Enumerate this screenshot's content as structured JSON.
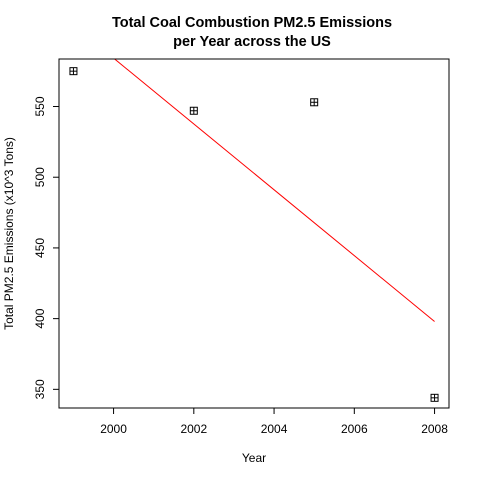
{
  "chart_data": {
    "type": "scatter",
    "title_lines": [
      "Total Coal Combustion PM2.5 Emissions",
      "per Year across the US"
    ],
    "xlabel": "Year",
    "ylabel": "Total PM2.5 Emissions (x10^3 Tons)",
    "x_ticks": [
      2000,
      2002,
      2004,
      2006,
      2008
    ],
    "y_ticks": [
      350,
      400,
      450,
      500,
      550
    ],
    "xlim": [
      1998.64,
      2008.36
    ],
    "ylim": [
      336.8,
      583.6
    ],
    "grid": false,
    "legend": "none",
    "series": [
      {
        "marker": "square-plus",
        "color": "#000000",
        "points": [
          {
            "x": 1999,
            "y": 575
          },
          {
            "x": 2002,
            "y": 547
          },
          {
            "x": 2005,
            "y": 553
          },
          {
            "x": 2008,
            "y": 344
          }
        ]
      }
    ],
    "trend_line": {
      "color": "#ff0000",
      "from": {
        "x": 1999,
        "y": 607.5
      },
      "to": {
        "x": 2008,
        "y": 398
      }
    }
  }
}
